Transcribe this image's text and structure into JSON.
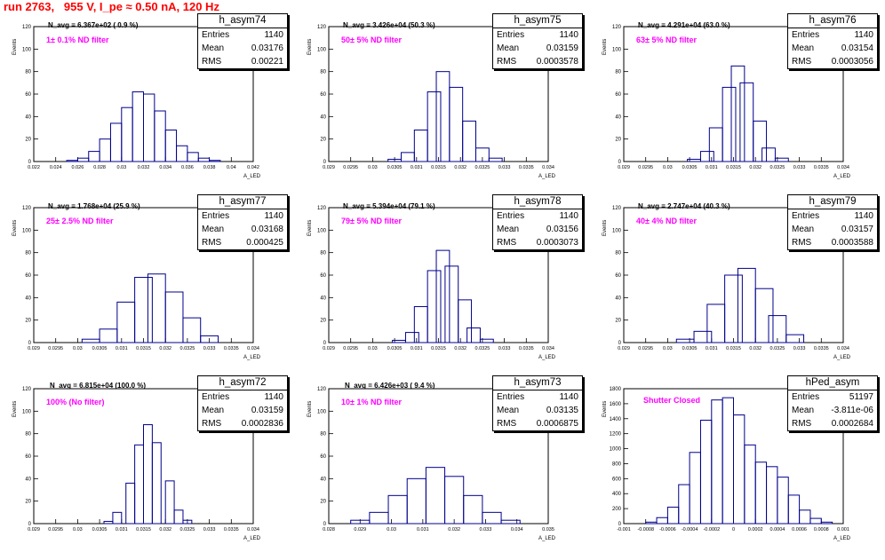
{
  "title": "run 2763,   955 V, I_pe ≈ 0.50 nA, 120 Hz",
  "axis_y_label": "Events",
  "axis_x_label": "A_LED",
  "stat_labels": {
    "entries": "Entries",
    "mean": "Mean",
    "rms": "RMS"
  },
  "panels": [
    {
      "name": "h_asym74",
      "navg": "N_avg = 6.367e+02 ( 0.9 %)",
      "filter": "1± 0.1% ND filter",
      "entries": "1140",
      "mean": "0.03176",
      "rms": "0.00221",
      "ticks": [
        "0.022",
        "0.024",
        "0.026",
        "0.028",
        "0.03",
        "0.032",
        "0.034",
        "0.036",
        "0.038",
        "0.04",
        "0.042"
      ]
    },
    {
      "name": "h_asym75",
      "navg": "N_avg = 3.426e+04 (50.3 %)",
      "filter": "50± 5% ND filter",
      "entries": "1140",
      "mean": "0.03159",
      "rms": "0.0003578",
      "ticks": [
        "0.029",
        "0.0295",
        "0.03",
        "0.0305",
        "0.031",
        "0.0315",
        "0.032",
        "0.0325",
        "0.033",
        "0.0335",
        "0.034"
      ]
    },
    {
      "name": "h_asym76",
      "navg": "N_avg = 4.291e+04 (63.0 %)",
      "filter": "63± 5% ND filter",
      "entries": "1140",
      "mean": "0.03154",
      "rms": "0.0003056",
      "ticks": [
        "0.029",
        "0.0295",
        "0.03",
        "0.0305",
        "0.031",
        "0.0315",
        "0.032",
        "0.0325",
        "0.033",
        "0.0335",
        "0.034"
      ]
    },
    {
      "name": "h_asym77",
      "navg": "N_avg = 1.768e+04 (25.9 %)",
      "filter": "25± 2.5% ND filter",
      "entries": "1140",
      "mean": "0.03168",
      "rms": "0.000425",
      "ticks": [
        "0.029",
        "0.0295",
        "0.03",
        "0.0305",
        "0.031",
        "0.0315",
        "0.032",
        "0.0325",
        "0.033",
        "0.0335",
        "0.034"
      ]
    },
    {
      "name": "h_asym78",
      "navg": "N_avg = 5.394e+04 (79.1 %)",
      "filter": "79± 5% ND filter",
      "entries": "1140",
      "mean": "0.03156",
      "rms": "0.0003073",
      "ticks": [
        "0.029",
        "0.0295",
        "0.03",
        "0.0305",
        "0.031",
        "0.0315",
        "0.032",
        "0.0325",
        "0.033",
        "0.0335",
        "0.034"
      ]
    },
    {
      "name": "h_asym79",
      "navg": "N_avg = 2.747e+04 (40.3 %)",
      "filter": "40± 4% ND filter",
      "entries": "1140",
      "mean": "0.03157",
      "rms": "0.0003588",
      "ticks": [
        "0.029",
        "0.0295",
        "0.03",
        "0.0305",
        "0.031",
        "0.0315",
        "0.032",
        "0.0325",
        "0.033",
        "0.0335",
        "0.034"
      ]
    },
    {
      "name": "h_asym72",
      "navg": "N_avg = 6.815e+04 (100.0 %)",
      "filter": "100% (No filter)",
      "entries": "1140",
      "mean": "0.03159",
      "rms": "0.0002836",
      "ticks": [
        "0.029",
        "0.0295",
        "0.03",
        "0.0305",
        "0.031",
        "0.0315",
        "0.032",
        "0.0325",
        "0.033",
        "0.0335",
        "0.034"
      ]
    },
    {
      "name": "h_asym73",
      "navg": "N_avg = 6.426e+03 ( 9.4 %)",
      "filter": "10± 1% ND filter",
      "entries": "1140",
      "mean": "0.03135",
      "rms": "0.0006875",
      "ticks": [
        "0.028",
        "0.029",
        "0.03",
        "0.031",
        "0.032",
        "0.033",
        "0.034",
        "0.035"
      ]
    },
    {
      "name": "hPed_asym",
      "navg": "",
      "filter": "Shutter Closed",
      "entries": "51197",
      "mean": "-3.811e-06",
      "rms": "0.0002684",
      "ticks": [
        "-0.001",
        "-0.0008",
        "-0.0006",
        "-0.0004",
        "-0.0002",
        "0",
        "0.0002",
        "0.0004",
        "0.0006",
        "0.0008",
        "0.001"
      ]
    }
  ],
  "chart_data": [
    {
      "type": "bar",
      "title": "h_asym74",
      "xlim": [
        0.022,
        0.042
      ],
      "ylim": [
        0,
        120
      ],
      "ylabel": "Events",
      "xlabel": "A_LED",
      "x": [
        0.0255,
        0.0265,
        0.0275,
        0.0285,
        0.0295,
        0.0305,
        0.0315,
        0.0325,
        0.0335,
        0.0345,
        0.0355,
        0.0365,
        0.0375,
        0.0385
      ],
      "values": [
        1,
        3,
        9,
        20,
        34,
        48,
        62,
        60,
        45,
        28,
        14,
        8,
        3,
        1
      ]
    },
    {
      "type": "bar",
      "title": "h_asym75",
      "xlim": [
        0.029,
        0.034
      ],
      "ylim": [
        0,
        120
      ],
      "ylabel": "Events",
      "xlabel": "A_LED",
      "x": [
        0.0305,
        0.0308,
        0.0311,
        0.0314,
        0.0316,
        0.0319,
        0.0322,
        0.0325,
        0.0328
      ],
      "values": [
        2,
        8,
        28,
        62,
        80,
        66,
        36,
        12,
        3
      ]
    },
    {
      "type": "bar",
      "title": "h_asym76",
      "xlim": [
        0.029,
        0.034
      ],
      "ylim": [
        0,
        120
      ],
      "ylabel": "Events",
      "xlabel": "A_LED",
      "x": [
        0.0306,
        0.0309,
        0.0311,
        0.0314,
        0.0316,
        0.0318,
        0.0321,
        0.0323,
        0.0326
      ],
      "values": [
        2,
        9,
        30,
        66,
        85,
        70,
        36,
        12,
        3
      ]
    },
    {
      "type": "bar",
      "title": "h_asym77",
      "xlim": [
        0.029,
        0.034
      ],
      "ylim": [
        0,
        120
      ],
      "ylabel": "Events",
      "xlabel": "A_LED",
      "x": [
        0.0303,
        0.0307,
        0.0311,
        0.0315,
        0.0318,
        0.0322,
        0.0326,
        0.033
      ],
      "values": [
        3,
        12,
        36,
        58,
        61,
        45,
        22,
        6
      ]
    },
    {
      "type": "bar",
      "title": "h_asym78",
      "xlim": [
        0.029,
        0.034
      ],
      "ylim": [
        0,
        120
      ],
      "ylabel": "Events",
      "xlabel": "A_LED",
      "x": [
        0.0306,
        0.0309,
        0.0311,
        0.0314,
        0.0316,
        0.0318,
        0.0321,
        0.0323,
        0.0326
      ],
      "values": [
        2,
        9,
        32,
        64,
        82,
        68,
        38,
        13,
        3
      ]
    },
    {
      "type": "bar",
      "title": "h_asym79",
      "xlim": [
        0.029,
        0.034
      ],
      "ylim": [
        0,
        120
      ],
      "ylabel": "Events",
      "xlabel": "A_LED",
      "x": [
        0.0304,
        0.0308,
        0.0311,
        0.0315,
        0.0318,
        0.0322,
        0.0325,
        0.0329
      ],
      "values": [
        3,
        10,
        34,
        60,
        66,
        48,
        24,
        7
      ]
    },
    {
      "type": "bar",
      "title": "h_asym72",
      "xlim": [
        0.029,
        0.034
      ],
      "ylim": [
        0,
        120
      ],
      "ylabel": "Events",
      "xlabel": "A_LED",
      "x": [
        0.0307,
        0.0309,
        0.0312,
        0.0314,
        0.0316,
        0.0318,
        0.0321,
        0.0323,
        0.0325
      ],
      "values": [
        2,
        10,
        36,
        70,
        88,
        72,
        38,
        12,
        3
      ]
    },
    {
      "type": "bar",
      "title": "h_asym73",
      "xlim": [
        0.028,
        0.035
      ],
      "ylim": [
        0,
        120
      ],
      "ylabel": "Events",
      "xlabel": "A_LED",
      "x": [
        0.029,
        0.0296,
        0.0302,
        0.0308,
        0.0314,
        0.032,
        0.0326,
        0.0332,
        0.0338
      ],
      "values": [
        3,
        10,
        25,
        40,
        50,
        42,
        25,
        10,
        3
      ]
    },
    {
      "type": "bar",
      "title": "hPed_asym",
      "xlim": [
        -0.001,
        0.001
      ],
      "ylim": [
        0,
        1800
      ],
      "ylabel": "Events",
      "xlabel": "A_LED",
      "x": [
        -0.00075,
        -0.00065,
        -0.00055,
        -0.00045,
        -0.00035,
        -0.00025,
        -0.00015,
        -5e-05,
        5e-05,
        0.00015,
        0.00025,
        0.00035,
        0.00045,
        0.00055,
        0.00065,
        0.00075,
        0.00085
      ],
      "values": [
        20,
        80,
        220,
        520,
        950,
        1380,
        1650,
        1680,
        1450,
        1050,
        820,
        760,
        620,
        380,
        180,
        70,
        20
      ]
    }
  ]
}
